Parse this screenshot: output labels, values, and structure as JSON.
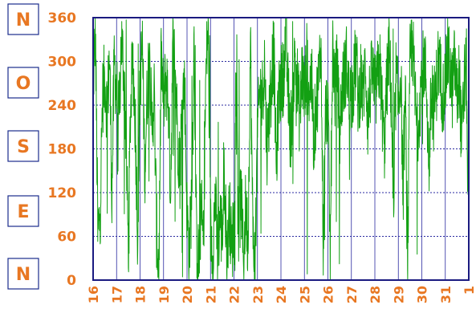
{
  "colors": {
    "accent": "#e87722",
    "series": "#13a013",
    "frame": "#1a1a80",
    "grid": "#2a2aa0",
    "box_border": "#1a2c8c"
  },
  "chart_data": {
    "type": "line",
    "title": "",
    "xlabel": "",
    "ylabel": "",
    "ylim": [
      0,
      360
    ],
    "xlim": [
      16,
      32
    ],
    "yticks": [
      "0",
      "60",
      "120",
      "180",
      "240",
      "300",
      "360"
    ],
    "xtick_labels": [
      "16",
      "17",
      "18",
      "19",
      "20",
      "21",
      "22",
      "23",
      "24",
      "25",
      "26",
      "27",
      "28",
      "29",
      "30",
      "31",
      "1"
    ],
    "direction_labels": [
      "N",
      "O",
      "S",
      "E",
      "N"
    ],
    "grid": true,
    "legend": "none",
    "series": [
      {
        "x": [
          16.0,
          16.1,
          16.2,
          16.3,
          16.4,
          16.5,
          16.6,
          16.7,
          16.8,
          16.9,
          17.0,
          17.1,
          17.2,
          17.3,
          17.4,
          17.5,
          17.6,
          17.7,
          17.8,
          17.9,
          18.0,
          18.1,
          18.2,
          18.3,
          18.4,
          18.5,
          18.6,
          18.7,
          18.8,
          18.9,
          19.0,
          19.1,
          19.2,
          19.3,
          19.4,
          19.5,
          19.6,
          19.7,
          19.8,
          19.9,
          20.0,
          20.1,
          20.2,
          20.3,
          20.4,
          20.5,
          20.6,
          20.7,
          20.8,
          20.9,
          21.0,
          21.1,
          21.2,
          21.3,
          21.4,
          21.5,
          21.6,
          21.7,
          21.8,
          21.9,
          22.0,
          22.1,
          22.2,
          22.3,
          22.4,
          22.5,
          22.6,
          22.7,
          22.8,
          22.9,
          23.0,
          23.1,
          23.2,
          23.3,
          23.4,
          23.5,
          23.6,
          23.7,
          23.8,
          23.9,
          24.0,
          24.1,
          24.2,
          24.3,
          24.4,
          24.5,
          24.6,
          24.7,
          24.8,
          24.9,
          25.0,
          25.1,
          25.2,
          25.3,
          25.4,
          25.5,
          25.6,
          25.7,
          25.8,
          25.9,
          26.0,
          26.1,
          26.2,
          26.3,
          26.4,
          26.5,
          26.6,
          26.7,
          26.8,
          26.9,
          27.0,
          27.1,
          27.2,
          27.3,
          27.4,
          27.5,
          27.6,
          27.7,
          27.8,
          27.9,
          28.0,
          28.1,
          28.2,
          28.3,
          28.4,
          28.5,
          28.6,
          28.7,
          28.8,
          28.9,
          29.0,
          29.1,
          29.2,
          29.3,
          29.4,
          29.5,
          29.6,
          29.7,
          29.8,
          29.9,
          30.0,
          30.1,
          30.2,
          30.3,
          30.4,
          30.5,
          30.6,
          30.7,
          30.8,
          30.9,
          31.0,
          31.1,
          31.2,
          31.3,
          31.4,
          31.5,
          31.6,
          31.7,
          31.8,
          31.9,
          32.0
        ],
        "values": [
          270,
          340,
          60,
          90,
          250,
          280,
          230,
          310,
          120,
          300,
          260,
          220,
          330,
          290,
          200,
          40,
          250,
          300,
          210,
          60,
          280,
          320,
          150,
          250,
          330,
          200,
          260,
          70,
          10,
          310,
          240,
          280,
          250,
          120,
          330,
          290,
          200,
          150,
          250,
          270,
          90,
          40,
          120,
          330,
          60,
          20,
          100,
          50,
          280,
          350,
          70,
          40,
          120,
          30,
          90,
          60,
          150,
          20,
          100,
          40,
          80,
          300,
          60,
          120,
          30,
          100,
          50,
          330,
          70,
          20,
          200,
          260,
          250,
          300,
          180,
          230,
          290,
          310,
          150,
          250,
          270,
          280,
          340,
          260,
          200,
          240,
          310,
          270,
          220,
          290,
          250,
          300,
          260,
          280,
          190,
          240,
          270,
          330,
          50,
          230,
          240,
          30,
          330,
          260,
          290,
          200,
          260,
          280,
          300,
          250,
          260,
          270,
          310,
          240,
          280,
          250,
          300,
          220,
          260,
          290,
          250,
          270,
          300,
          240,
          180,
          260,
          320,
          250,
          70,
          280,
          240,
          290,
          130,
          250,
          30,
          300,
          330,
          260,
          200,
          240,
          280,
          300,
          270,
          150,
          250,
          230,
          260,
          300,
          280,
          250,
          270,
          310,
          290,
          260,
          300,
          250,
          280,
          180,
          270,
          290,
          10
        ]
      }
    ]
  }
}
